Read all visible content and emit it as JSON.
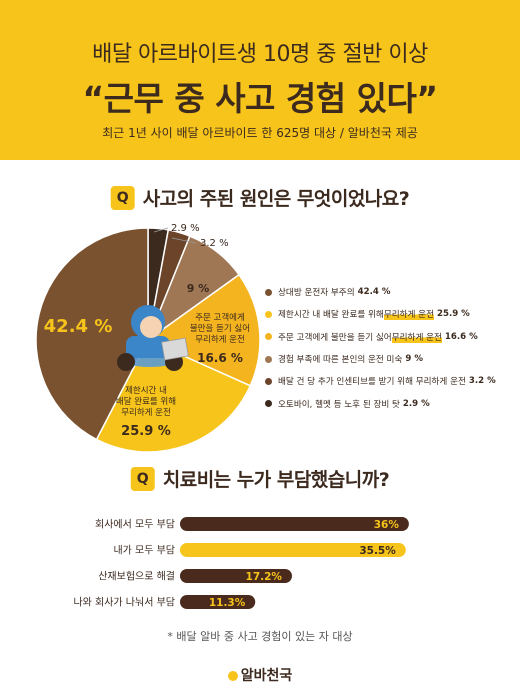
{
  "header": {
    "title_line1": "배달 아르바이트생 10명 중 절반 이상",
    "title_line2": "“근무 중 사고 경험 있다”",
    "subtitle": "최근 1년 사이 배달 아르바이트 한 625명 대상 / 알바천국 제공"
  },
  "section1": {
    "badge": "Q",
    "question": "사고의 주된 원인은 무엇이었나요?"
  },
  "section2": {
    "badge": "Q",
    "question": "치료비는 누가 부담했습니까?"
  },
  "colors": {
    "header_bg": "#f6c41a",
    "dark_brown": "#3c2a1f",
    "chocolate": "#4a2a1c",
    "brown": "#7a5230",
    "light_brown": "#a07754",
    "orange_yellow": "#f4b41f",
    "yellow": "#f6c41a"
  },
  "chart_data": [
    {
      "type": "pie",
      "title": "사고의 주된 원인은 무엇이었나요?",
      "slices": [
        {
          "label": "상대방 운전자 부주의",
          "value": 42.4,
          "value_text": "42.4 %",
          "color": "#7a5230"
        },
        {
          "label_lines": [
            "제한시간 내",
            "배달 완료를 위해",
            "무리하게 운전"
          ],
          "label": "제한시간 내 배달 완료를 위해 무리하게 운전",
          "value": 25.9,
          "value_text": "25.9 %",
          "color": "#f6c41a"
        },
        {
          "label_lines": [
            "주문 고객에게",
            "불만을 듣기 싫어",
            "무리하게 운전"
          ],
          "label": "주문 고객에게 불만을 듣기 싫어 무리하게 운전",
          "value": 16.6,
          "value_text": "16.6 %",
          "color": "#f4b41f"
        },
        {
          "label": "경험 부족에 따른 본인의 운전 미숙",
          "value": 9,
          "value_text": "9 %",
          "color": "#a07754"
        },
        {
          "label": "배달 건 당 추가 인센티브를 받기 위해 무리하게 운전",
          "value": 3.2,
          "value_text": "3.2 %",
          "color": "#6b4429"
        },
        {
          "label": "오토바이, 헬멧 등 노후 된 장비 탓",
          "value": 2.9,
          "value_text": "2.9 %",
          "color": "#3c2a1f"
        }
      ],
      "legend": [
        {
          "pre": "상대방 운전자 부주의",
          "hl": "",
          "value": "42.4 %",
          "color": "#7a5230"
        },
        {
          "pre": "제한시간 내 배달 완료를 위해 ",
          "hl": "무리하게 운전",
          "value": "25.9 %",
          "color": "#f6c41a"
        },
        {
          "pre": "주문 고객에게 불만을 듣기 싫어 ",
          "hl": "무리하게 운전",
          "value": "16.6 %",
          "color": "#f4b41f"
        },
        {
          "pre": "경험 부족에 따른 본인의 운전 미숙",
          "hl": "",
          "value": "9 %",
          "color": "#a07754"
        },
        {
          "pre": "배달 건 당 추가 인센티브를 받기 위해 무리하게 운전",
          "hl": "",
          "value": "3.2 %",
          "color": "#6b4429"
        },
        {
          "pre": "오토바이, 헬멧 등 노후 된 장비 탓",
          "hl": "",
          "value": "2.9 %",
          "color": "#3c2a1f"
        }
      ],
      "legend_placement": "right"
    },
    {
      "type": "bar",
      "orientation": "horizontal",
      "title": "치료비는 누가 부담했습니까?",
      "categories": [
        "회사에서 모두 부담",
        "내가 모두 부담",
        "산재보험으로 해결",
        "나와 회사가 나눠서 부담"
      ],
      "values": [
        36,
        35.5,
        17.2,
        11.3
      ],
      "value_labels": [
        "36%",
        "35.5%",
        "17.2%",
        "11.3%"
      ],
      "colors": [
        "#4a2a1c",
        "#f6c41a",
        "#4a2a1c",
        "#4a2a1c"
      ],
      "xlim": [
        0,
        40
      ]
    }
  ],
  "footnote": "* 배달 알바 중 사고 경험이 있는 자 대상",
  "brand": "알바천국",
  "icons": {
    "illustration": "delivery-rider-icon",
    "brand_mark": "brand-logo-icon"
  }
}
